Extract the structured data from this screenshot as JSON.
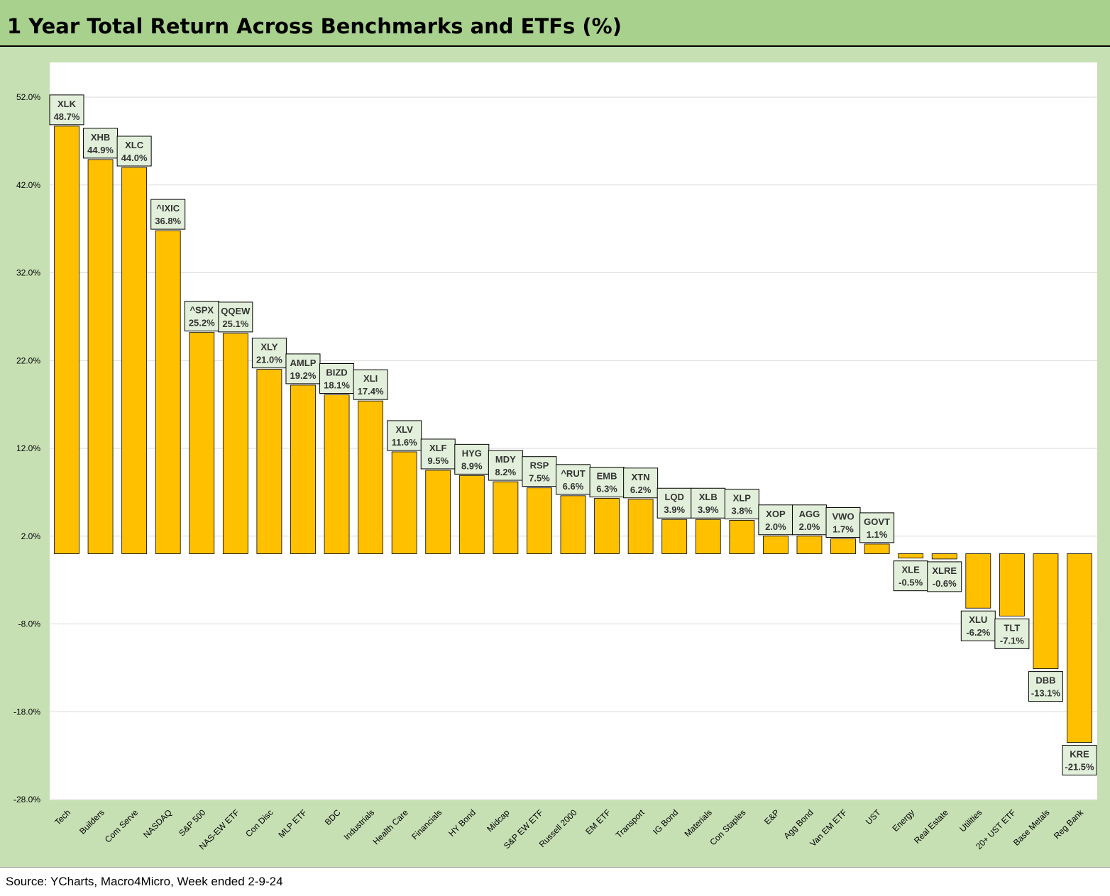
{
  "title": "1 Year Total Return Across Benchmarks and ETFs (%)",
  "source": "Source: YCharts, Macro4Micro, Week ended 2-9-24",
  "colors": {
    "bar": "#ffc000",
    "frame": "#c6e0b4",
    "title_bg": "#a9d18e",
    "label_bg": "#e2efda"
  },
  "chart_data": {
    "type": "bar",
    "title": "1 Year Total Return Across Benchmarks and ETFs (%)",
    "xlabel": "",
    "ylabel": "",
    "ylim": [
      -28,
      52
    ],
    "yticks": [
      "52.0%",
      "42.0%",
      "32.0%",
      "22.0%",
      "12.0%",
      "2.0%",
      "-8.0%",
      "-18.0%",
      "-28.0%"
    ],
    "grid": true,
    "categories": [
      "Tech",
      "Builders",
      "Com Serve",
      "NASDAQ",
      "S&P 500",
      "NAS-EW ETF",
      "Con Disc",
      "MLP ETF",
      "BDC",
      "Industrials",
      "Health Care",
      "Financials",
      "HY Bond",
      "Midcap",
      "S&P EW ETF",
      "Russell 2000",
      "EM ETF",
      "Transport",
      "IG Bond",
      "Materials",
      "Con Staples",
      "E&P",
      "Agg Bond",
      "Van EM ETF",
      "UST",
      "Energy",
      "Real Estate",
      "Utilities",
      "20+ UST ETF",
      "Base Metals",
      "Reg Bank"
    ],
    "tickers": [
      "XLK",
      "XHB",
      "XLC",
      "^IXIC",
      "^SPX",
      "QQEW",
      "XLY",
      "AMLP",
      "BIZD",
      "XLI",
      "XLV",
      "XLF",
      "HYG",
      "MDY",
      "RSP",
      "^RUT",
      "EMB",
      "XTN",
      "LQD",
      "XLB",
      "XLP",
      "XOP",
      "AGG",
      "VWO",
      "GOVT",
      "XLE",
      "XLRE",
      "XLU",
      "TLT",
      "DBB",
      "KRE"
    ],
    "value_labels": [
      "48.7%",
      "44.9%",
      "44.0%",
      "36.8%",
      "25.2%",
      "25.1%",
      "21.0%",
      "19.2%",
      "18.1%",
      "17.4%",
      "11.6%",
      "9.5%",
      "8.9%",
      "8.2%",
      "7.5%",
      "6.6%",
      "6.3%",
      "6.2%",
      "3.9%",
      "3.9%",
      "3.8%",
      "2.0%",
      "2.0%",
      "1.7%",
      "1.1%",
      "-0.5%",
      "-0.6%",
      "-6.2%",
      "-7.1%",
      "-13.1%",
      "-21.5%"
    ],
    "values": [
      48.7,
      44.9,
      44.0,
      36.8,
      25.2,
      25.1,
      21.0,
      19.2,
      18.1,
      17.4,
      11.6,
      9.5,
      8.9,
      8.2,
      7.5,
      6.6,
      6.3,
      6.2,
      3.9,
      3.9,
      3.8,
      2.0,
      2.0,
      1.7,
      1.1,
      -0.5,
      -0.6,
      -6.2,
      -7.1,
      -13.1,
      -21.5
    ]
  }
}
